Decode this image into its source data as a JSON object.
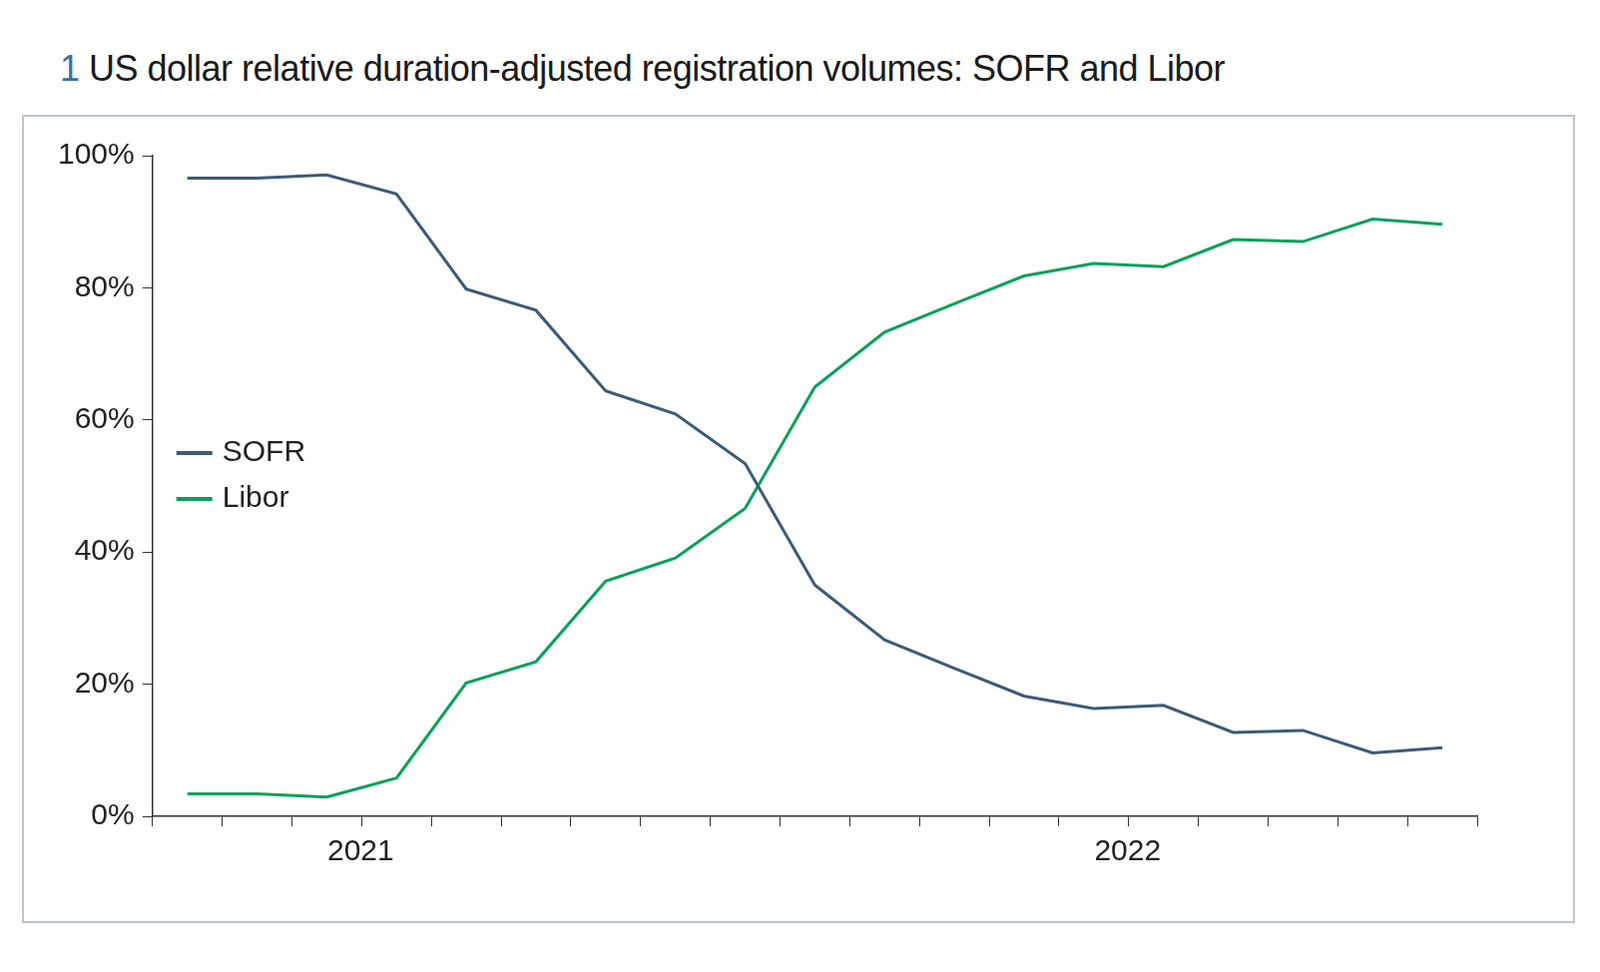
{
  "chart_data": {
    "type": "line",
    "title": "1 US dollar relative duration-adjusted registration volumes: SOFR and Libor",
    "categories": [
      null,
      null,
      "2021",
      null,
      null,
      null,
      null,
      null,
      null,
      null,
      null,
      null,
      null,
      "2022",
      null,
      null,
      null,
      null,
      null
    ],
    "series": [
      {
        "name": "SOFR",
        "color": "#3d5a78",
        "values": [
          96.6,
          96.6,
          97.1,
          94.2,
          79.8,
          76.6,
          64.4,
          60.9,
          53.4,
          35.0,
          26.7,
          22.4,
          18.2,
          16.3,
          16.8,
          12.7,
          13.0,
          9.6,
          10.4
        ]
      },
      {
        "name": "Libor",
        "color": "#0aa15a",
        "values": [
          3.4,
          3.4,
          2.9,
          5.8,
          20.2,
          23.4,
          35.6,
          39.1,
          46.6,
          65.0,
          73.3,
          77.6,
          81.8,
          83.7,
          83.2,
          87.3,
          87.0,
          90.4,
          89.6
        ]
      }
    ],
    "ylim": [
      0,
      100
    ],
    "yticks": [
      {
        "value": 0,
        "label": "0%"
      },
      {
        "value": 20,
        "label": "20%"
      },
      {
        "value": 40,
        "label": "40%"
      },
      {
        "value": 60,
        "label": "60%"
      },
      {
        "value": 80,
        "label": "80%"
      },
      {
        "value": 100,
        "label": "100%"
      }
    ],
    "grid": false,
    "legend": "left"
  }
}
